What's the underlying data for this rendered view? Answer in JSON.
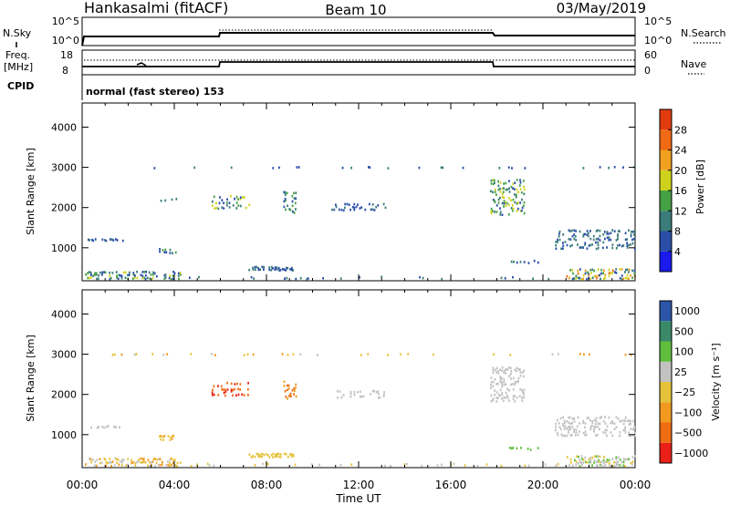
{
  "header": {
    "station": "Hankasalmi (fitACF)",
    "beam": "Beam 10",
    "date": "03/May/2019"
  },
  "summary": {
    "nsky_label": "N.Sky",
    "nsky_ticks": [
      "10^5",
      "10^0"
    ],
    "nsearch_label": "N.Search",
    "nsearch_ticks": [
      "10^5",
      "10^0"
    ],
    "freq_label": "Freq.",
    "freq_unit": "[MHz]",
    "freq_ticks": [
      "18",
      "8"
    ],
    "nave_label": "Nave",
    "nave_ticks": [
      "60",
      "0"
    ],
    "cpid_label": "CPID",
    "cpid_text": "normal (fast stereo) 153"
  },
  "colors": {
    "power": [
      "#1a1aee",
      "#2a4ea8",
      "#3a7d7a",
      "#45a145",
      "#cfd21c",
      "#f1a020",
      "#f06a16",
      "#e23b10"
    ],
    "velocity": [
      "#e82018",
      "#f06c12",
      "#f19a1e",
      "#e6c23a",
      "#c2c2c2",
      "#5fbf3c",
      "#3a8a6a",
      "#2a55a8"
    ]
  },
  "chart_data": [
    {
      "type": "heatmap",
      "name": "power",
      "ylabel": "Slant Range [km]",
      "yticks": [
        "1000",
        "2000",
        "3000",
        "4000"
      ],
      "ylim": [
        180,
        4600
      ],
      "xlim": [
        0,
        24
      ],
      "xticks": [
        "00:00",
        "04:00",
        "08:00",
        "12:00",
        "16:00",
        "20:00",
        "00:00"
      ],
      "colorbar": {
        "label": "Power [dB]",
        "ticks": [
          "4",
          "8",
          "12",
          "16",
          "20",
          "24",
          "28"
        ],
        "range": [
          0,
          32
        ]
      },
      "regions": [
        {
          "t": [
            0.1,
            4.3
          ],
          "r": [
            200,
            420
          ],
          "v": [
            4,
            18
          ],
          "d": 0.55
        },
        {
          "t": [
            4.3,
            21.0
          ],
          "r": [
            200,
            300
          ],
          "v": [
            4,
            12
          ],
          "d": 0.12
        },
        {
          "t": [
            21.0,
            24.0
          ],
          "r": [
            200,
            480
          ],
          "v": [
            4,
            26
          ],
          "d": 0.5
        },
        {
          "t": [
            0.2,
            1.8
          ],
          "r": [
            1150,
            1230
          ],
          "v": [
            4,
            10
          ],
          "d": 0.7
        },
        {
          "t": [
            3.3,
            4.1
          ],
          "r": [
            850,
            980
          ],
          "v": [
            4,
            14
          ],
          "d": 0.6
        },
        {
          "t": [
            3.3,
            4.1
          ],
          "r": [
            2150,
            2250
          ],
          "v": [
            6,
            14
          ],
          "d": 0.4
        },
        {
          "t": [
            5.6,
            7.3
          ],
          "r": [
            1950,
            2300
          ],
          "v": [
            6,
            20
          ],
          "d": 0.35
        },
        {
          "t": [
            7.2,
            9.2
          ],
          "r": [
            420,
            530
          ],
          "v": [
            4,
            10
          ],
          "d": 0.7
        },
        {
          "t": [
            8.7,
            9.3
          ],
          "r": [
            1850,
            2400
          ],
          "v": [
            6,
            14
          ],
          "d": 0.3
        },
        {
          "t": [
            10.8,
            13.2
          ],
          "r": [
            1900,
            2100
          ],
          "v": [
            4,
            10
          ],
          "d": 0.3
        },
        {
          "t": [
            17.7,
            19.2
          ],
          "r": [
            1800,
            2700
          ],
          "v": [
            6,
            20
          ],
          "d": 0.4
        },
        {
          "t": [
            18.5,
            19.8
          ],
          "r": [
            600,
            700
          ],
          "v": [
            4,
            10
          ],
          "d": 0.5
        },
        {
          "t": [
            20.5,
            24.0
          ],
          "r": [
            950,
            1450
          ],
          "v": [
            4,
            12
          ],
          "d": 0.35
        },
        {
          "t": [
            0.8,
            24.0
          ],
          "r": [
            2960,
            3010
          ],
          "v": [
            4,
            12
          ],
          "d": 0.12
        }
      ]
    },
    {
      "type": "heatmap",
      "name": "velocity",
      "ylabel": "Slant Range [km]",
      "yticks": [
        "1000",
        "2000",
        "3000",
        "4000"
      ],
      "ylim": [
        180,
        4600
      ],
      "xlim": [
        0,
        24
      ],
      "xticks": [
        "00:00",
        "04:00",
        "08:00",
        "12:00",
        "16:00",
        "20:00",
        "00:00"
      ],
      "xlabel": "Time UT",
      "colorbar": {
        "label": "Velocity [m s⁻¹]",
        "ticks": [
          "1000",
          "500",
          "100",
          "25",
          "−25",
          "−100",
          "−500",
          "−1000"
        ]
      },
      "regions": [
        {
          "t": [
            0.1,
            4.3
          ],
          "r": [
            200,
            420
          ],
          "v": [
            2,
            4
          ],
          "d": 0.55
        },
        {
          "t": [
            4.3,
            21.0
          ],
          "r": [
            200,
            300
          ],
          "v": [
            3,
            4
          ],
          "d": 0.12
        },
        {
          "t": [
            21.0,
            24.0
          ],
          "r": [
            200,
            480
          ],
          "v": [
            3,
            5
          ],
          "d": 0.5
        },
        {
          "t": [
            0.2,
            1.8
          ],
          "r": [
            1150,
            1230
          ],
          "v": [
            4,
            4
          ],
          "d": 0.7
        },
        {
          "t": [
            3.3,
            4.1
          ],
          "r": [
            850,
            980
          ],
          "v": [
            2,
            3
          ],
          "d": 0.6
        },
        {
          "t": [
            5.6,
            7.3
          ],
          "r": [
            1950,
            2300
          ],
          "v": [
            0,
            1
          ],
          "d": 0.35
        },
        {
          "t": [
            7.2,
            9.2
          ],
          "r": [
            420,
            530
          ],
          "v": [
            3,
            3
          ],
          "d": 0.7
        },
        {
          "t": [
            8.7,
            9.3
          ],
          "r": [
            1850,
            2400
          ],
          "v": [
            1,
            2
          ],
          "d": 0.3
        },
        {
          "t": [
            10.8,
            13.2
          ],
          "r": [
            1900,
            2100
          ],
          "v": [
            4,
            4
          ],
          "d": 0.3
        },
        {
          "t": [
            17.7,
            19.2
          ],
          "r": [
            1800,
            2700
          ],
          "v": [
            4,
            4
          ],
          "d": 0.4
        },
        {
          "t": [
            18.5,
            19.8
          ],
          "r": [
            600,
            700
          ],
          "v": [
            5,
            5
          ],
          "d": 0.5
        },
        {
          "t": [
            20.5,
            24.0
          ],
          "r": [
            950,
            1450
          ],
          "v": [
            4,
            4
          ],
          "d": 0.35
        },
        {
          "t": [
            0.8,
            24.0
          ],
          "r": [
            2960,
            3010
          ],
          "v": [
            2,
            4
          ],
          "d": 0.12
        }
      ]
    }
  ]
}
